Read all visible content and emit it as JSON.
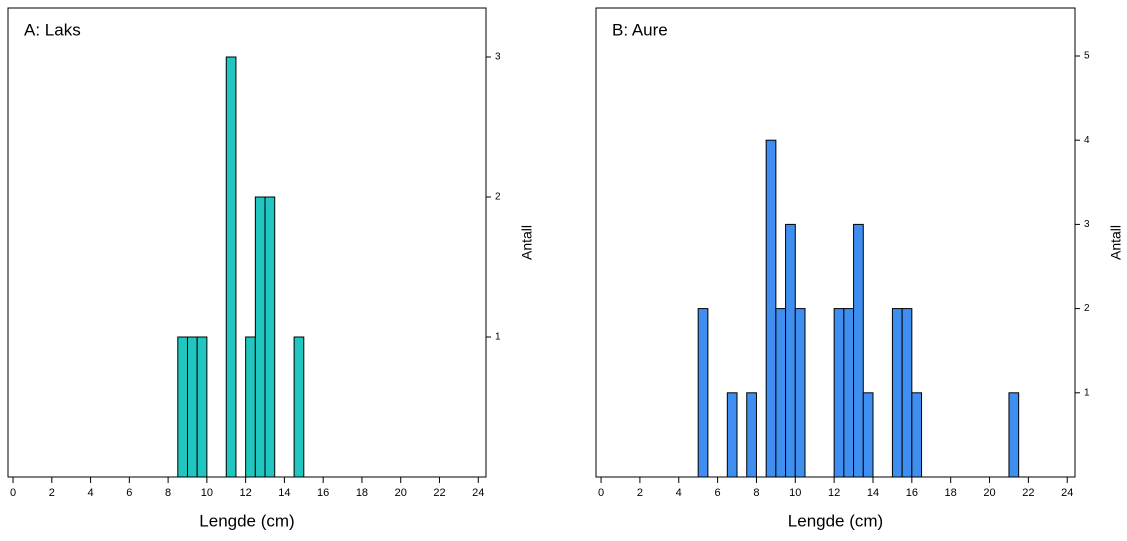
{
  "chart_data": [
    {
      "type": "histogram",
      "title": "A: Laks",
      "xlabel": "Lengde (cm)",
      "ylabel": "Antall",
      "color": "#20c6bf",
      "bins": [
        8.5,
        9,
        9.5,
        10,
        10.5,
        11,
        11.5,
        12,
        12.5,
        13,
        13.5,
        14,
        14.5,
        15
      ],
      "counts": [
        1,
        1,
        1,
        0,
        0,
        3,
        0,
        1,
        2,
        2,
        0,
        0,
        1
      ],
      "xlim": [
        -0.26,
        24.4
      ],
      "xticks": [
        0,
        2,
        4,
        6,
        8,
        10,
        12,
        14,
        16,
        18,
        20,
        22,
        24
      ],
      "ylim": [
        0,
        3.35
      ],
      "yticks": [
        1,
        2,
        3
      ]
    },
    {
      "type": "histogram",
      "title": "B: Aure",
      "xlabel": "Lengde (cm)",
      "ylabel": "Antall",
      "color": "#3f8ff0",
      "bins": [
        5,
        5.5,
        6,
        6.5,
        7,
        7.5,
        8,
        8.5,
        9,
        9.5,
        10,
        10.5,
        11,
        11.5,
        12,
        12.5,
        13,
        13.5,
        14,
        14.5,
        15,
        15.5,
        16,
        16.5,
        17,
        17.5,
        18,
        18.5,
        19,
        19.5,
        20,
        20.5,
        21,
        21.5
      ],
      "counts": [
        2,
        0,
        0,
        1,
        0,
        1,
        0,
        4,
        2,
        3,
        2,
        0,
        0,
        0,
        2,
        2,
        3,
        1,
        0,
        0,
        2,
        2,
        1,
        0,
        0,
        0,
        0,
        0,
        0,
        0,
        0,
        0,
        1
      ],
      "xlim": [
        -0.26,
        24.4
      ],
      "xticks": [
        0,
        2,
        4,
        6,
        8,
        10,
        12,
        14,
        16,
        18,
        20,
        22,
        24
      ],
      "ylim": [
        0,
        5.57
      ],
      "yticks": [
        1,
        2,
        3,
        4,
        5
      ]
    }
  ]
}
